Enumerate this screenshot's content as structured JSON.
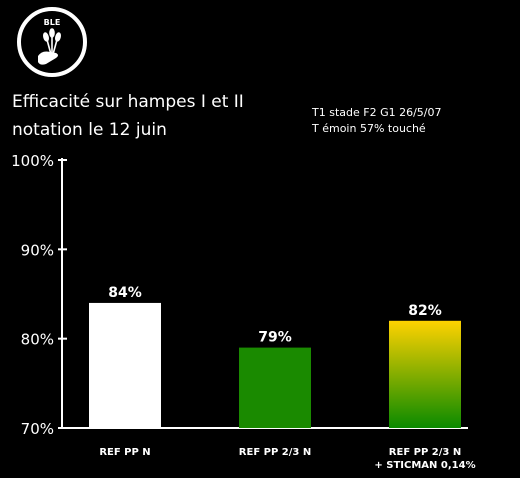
{
  "logo": {
    "text": "BLE"
  },
  "title_line1": "Efficacité sur hampes I et II",
  "title_line2": "notation le 12 juin",
  "note_line1": "T1 stade F2 G1 26/5/07",
  "note_line2": "T émoin 57% touché",
  "chart_data": {
    "type": "bar",
    "categories": [
      "REF PP N",
      "REF PP 2/3 N",
      "REF PP 2/3 N\n+ STICMAN 0,14%"
    ],
    "values": [
      84,
      79,
      82
    ],
    "data_labels": [
      "84%",
      "79%",
      "82%"
    ],
    "ylim": [
      70,
      100
    ],
    "yticks": [
      70,
      80,
      90,
      100
    ],
    "ytick_labels": [
      "70%",
      "80%",
      "90%",
      "100%"
    ],
    "grid": false,
    "bar_fills": [
      "white",
      "green",
      "yellow-green-gradient"
    ],
    "colors": {
      "white": "#ffffff",
      "green": "#1a8a00",
      "gradient_top": "#ffd200",
      "gradient_bottom": "#0a8a00"
    }
  }
}
